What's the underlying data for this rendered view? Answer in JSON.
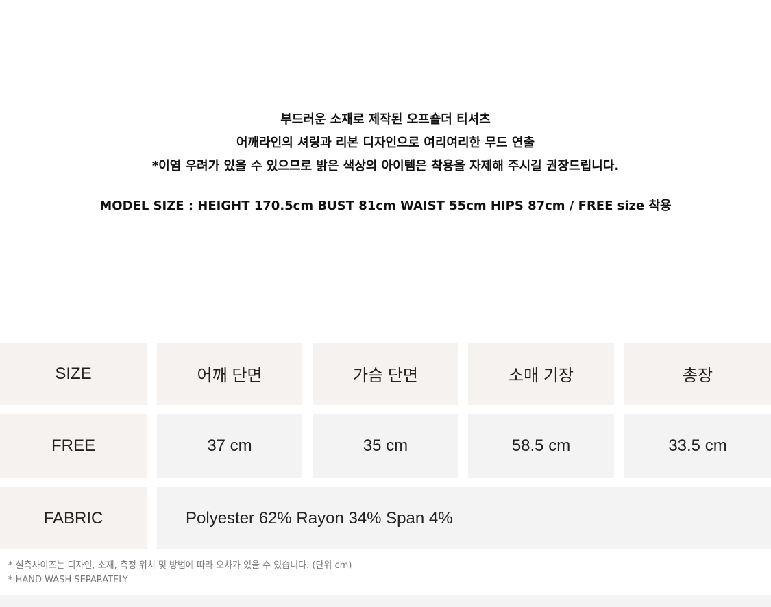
{
  "intro": {
    "lines": [
      "부드러운 소재로 제작된 오프숄더 티셔츠",
      "어깨라인의 셔링과 리본 디자인으로 여리여리한 무드 연출",
      "*이염 우려가 있을 수 있으므로 밝은 색상의 아이템은 착용을 자제해 주시길 권장드립니다."
    ],
    "model_size": "MODEL SIZE : HEIGHT 170.5cm BUST 81cm WAIST 55cm HIPS 87cm / FREE size 착용"
  },
  "size_table": {
    "headers": [
      "SIZE",
      "어깨 단면",
      "가슴 단면",
      "소매 기장",
      "총장"
    ],
    "rows": [
      [
        "FREE",
        "37 cm",
        "35 cm",
        "58.5 cm",
        "33.5 cm"
      ]
    ],
    "fabric_label": "FABRIC",
    "fabric_value": "Polyester 62% Rayon 34% Span 4%"
  },
  "notes": [
    "* 실측사이즈는 디자인, 소재, 측정 위치 및 방법에 따라 오차가 있을 수 있습니다. (단위 cm)",
    "* HAND WASH SEPARATELY"
  ],
  "colors": {
    "header_cell": "#f5f2ef",
    "value_cell": "#f3f3f3"
  }
}
